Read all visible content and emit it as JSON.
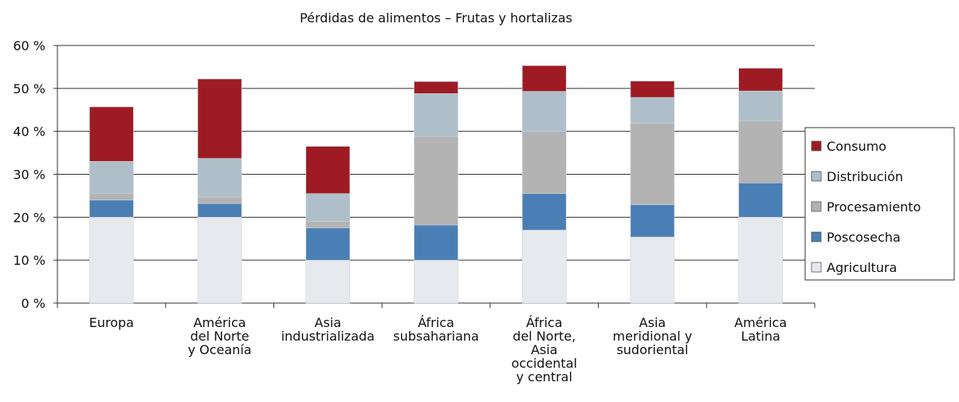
{
  "chart_data": {
    "type": "stacked_bar",
    "title": "Pérdidas de alimentos – Frutas y hortalizas",
    "categories": [
      "Europa",
      "América\ndel Norte\ny Oceanía",
      "Asia\nindustrializada",
      "África\nsubsahariana",
      "África\ndel Norte,\nAsia\noccidental\ny central",
      "Asia\nmeridional y\nsudoriental",
      "América\nLatina"
    ],
    "series": [
      {
        "name": "Agricultura",
        "color": "#e6e9ed",
        "values": [
          20,
          20,
          10,
          10,
          17,
          15.4,
          20
        ]
      },
      {
        "name": "Poscosecha",
        "color": "#4a7fb5",
        "values": [
          4,
          3.2,
          7.5,
          8.2,
          8.5,
          7.5,
          8
        ]
      },
      {
        "name": "Procesamiento",
        "color": "#b3b3b3",
        "values": [
          1.5,
          1.5,
          1.5,
          20.6,
          14.5,
          19,
          14.4
        ]
      },
      {
        "name": "Distribución",
        "color": "#aebfc9",
        "values": [
          7.5,
          9,
          6.5,
          10,
          9.3,
          6,
          7
        ]
      },
      {
        "name": "Consumo",
        "color": "#9e1b24",
        "values": [
          12.7,
          18.5,
          11,
          2.8,
          6,
          3.8,
          5.3
        ]
      }
    ],
    "ylim": [
      0,
      60
    ],
    "yticks": [
      {
        "value": 0,
        "label": "0 %"
      },
      {
        "value": 10,
        "label": "10 %"
      },
      {
        "value": 20,
        "label": "20 %"
      },
      {
        "value": 30,
        "label": "30 %"
      },
      {
        "value": 40,
        "label": "40 %"
      },
      {
        "value": 50,
        "label": "50 %"
      },
      {
        "value": 60,
        "label": "60 %"
      }
    ],
    "grid": true,
    "legend": "right"
  }
}
